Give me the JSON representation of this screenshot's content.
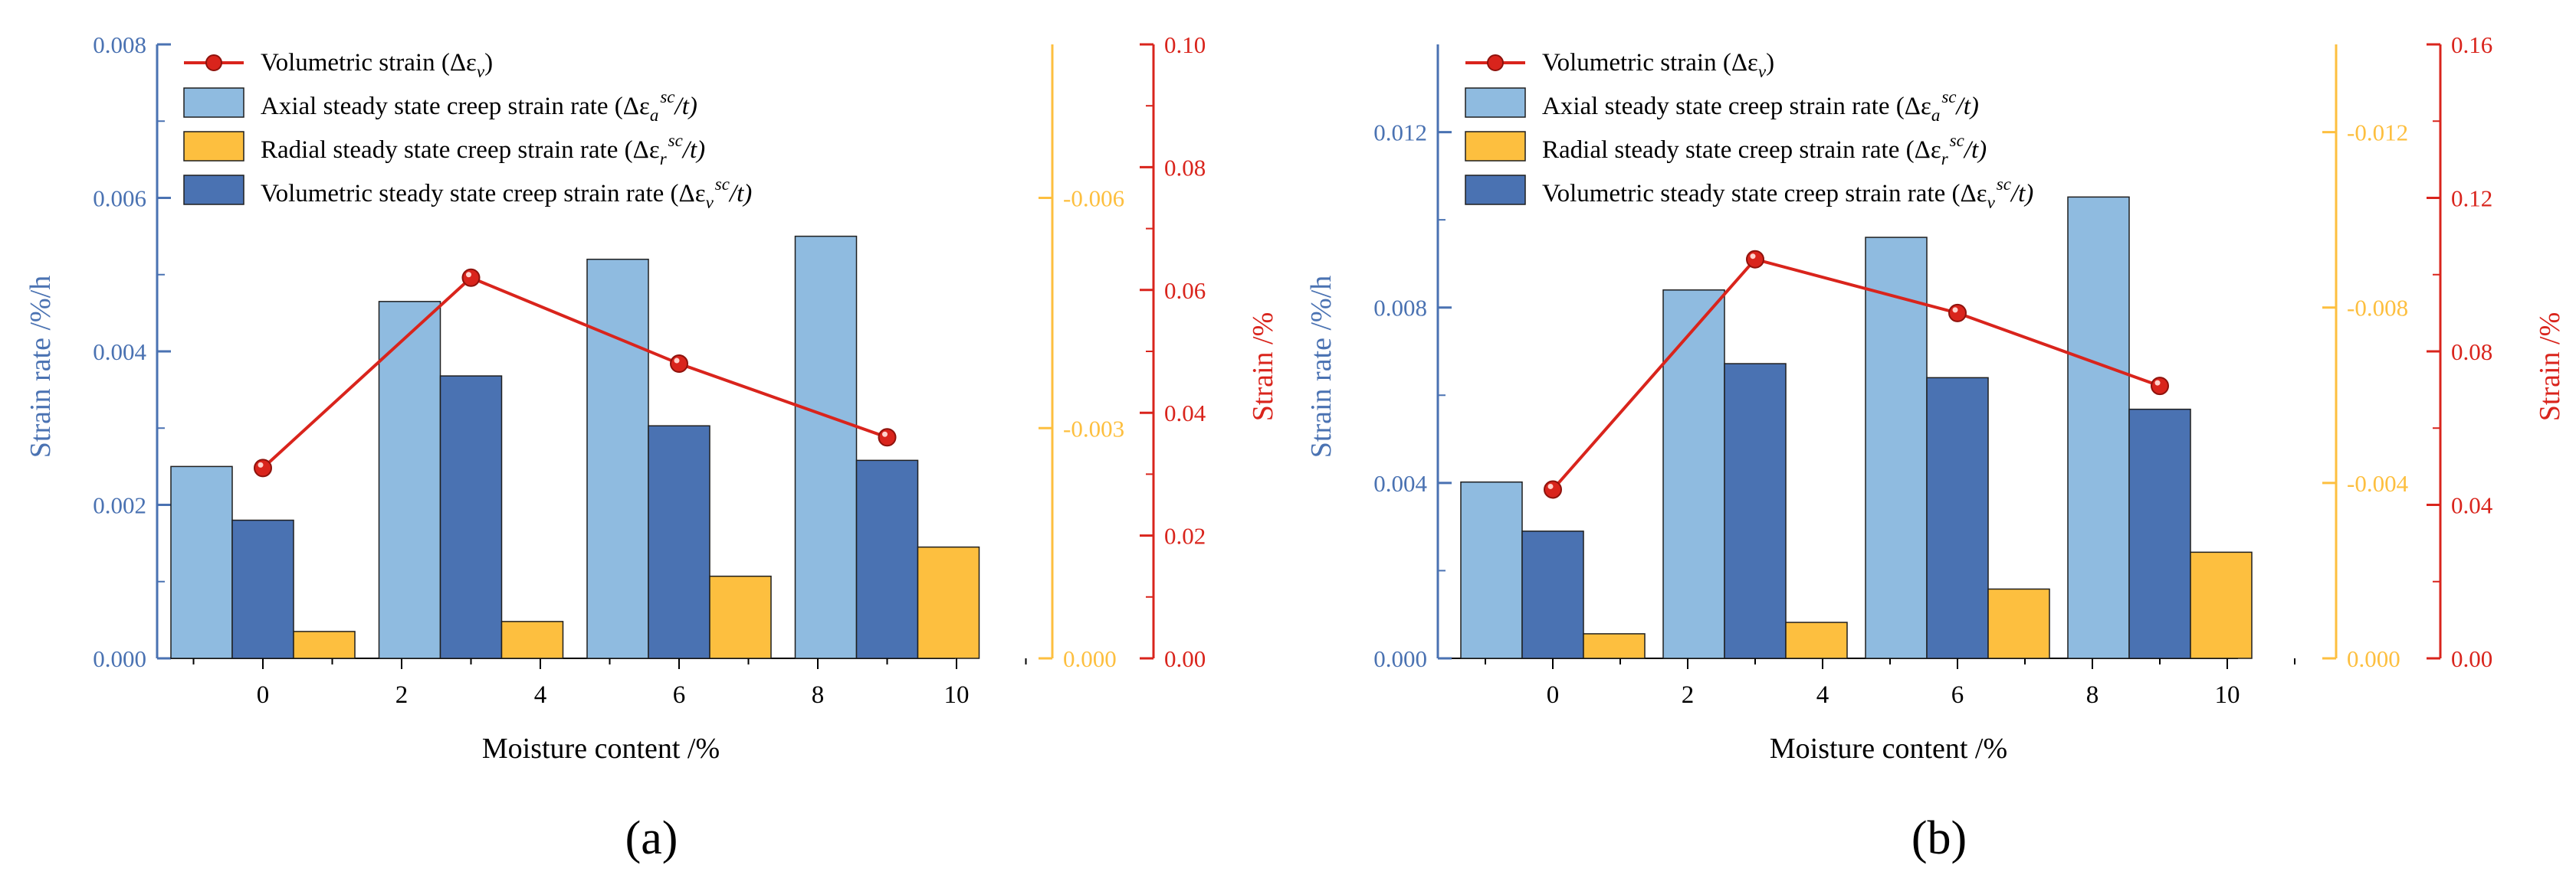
{
  "colors": {
    "axial": "#8fbbe0",
    "radial": "#fdbf3f",
    "volumetric": "#4a72b2",
    "strain_line": "#d9241c",
    "left_axis": "#4a72b2",
    "radial_axis": "#fdbf3f",
    "strain_axis": "#d9241c"
  },
  "chart_data": [
    {
      "type": "bar",
      "panel_label": "(a)",
      "xlabel": "Moisture content /%",
      "x_ticks": [
        "0",
        "2",
        "4",
        "6",
        "8",
        "10"
      ],
      "ylabel": "Strain rate /%/h",
      "ylim": [
        0,
        0.008
      ],
      "yticks": [
        "0.000",
        "0.002",
        "0.004",
        "0.006",
        "0.008"
      ],
      "radial_axis": {
        "ylim": [
          0,
          -0.008
        ],
        "ticks": [
          "0.000",
          "-0.003",
          "-0.006"
        ]
      },
      "strain_axis": {
        "ylabel": "Strain /%",
        "ylim": [
          0,
          0.1
        ],
        "ticks": [
          "0.00",
          "0.02",
          "0.04",
          "0.06",
          "0.08",
          "0.10"
        ]
      },
      "legend": {
        "strain": "Volumetric strain (Δε",
        "strain_sub": "v",
        "axial": "Axial steady state creep strain rate (Δε",
        "axial_sub": "a",
        "radial": "Radial steady state creep strain rate (Δε",
        "radial_sub": "r",
        "vol": "Volumetric steady state creep strain rate (Δε",
        "vol_sub": "v",
        "sc": "sc",
        "tail": "/t)",
        "close": ")"
      },
      "groups": [
        {
          "moisture": 0,
          "axial": 0.0025,
          "volumetric": 0.0018,
          "radial": -0.00035,
          "strain": 0.031
        },
        {
          "moisture": 3,
          "axial": 0.00465,
          "volumetric": 0.00368,
          "radial": -0.00048,
          "strain": 0.062
        },
        {
          "moisture": 6,
          "axial": 0.0052,
          "volumetric": 0.00303,
          "radial": -0.00107,
          "strain": 0.048
        },
        {
          "moisture": 9,
          "axial": 0.0055,
          "volumetric": 0.00258,
          "radial": -0.00145,
          "strain": 0.036
        }
      ]
    },
    {
      "type": "bar",
      "panel_label": "(b)",
      "xlabel": "Moisture content /%",
      "x_ticks": [
        "0",
        "2",
        "4",
        "6",
        "8",
        "10"
      ],
      "ylabel": "Strain rate /%/h",
      "ylim": [
        0,
        0.014
      ],
      "yticks": [
        "0.000",
        "0.004",
        "0.008",
        "0.012"
      ],
      "radial_axis": {
        "ylim": [
          0,
          -0.014
        ],
        "ticks": [
          "0.000",
          "-0.004",
          "-0.008",
          "-0.012"
        ]
      },
      "strain_axis": {
        "ylabel": "Strain /%",
        "ylim": [
          0,
          0.16
        ],
        "ticks": [
          "0.00",
          "0.04",
          "0.08",
          "0.12",
          "0.16"
        ]
      },
      "legend": {
        "strain": "Volumetric strain (Δε",
        "strain_sub": "v",
        "axial": "Axial steady state creep strain rate (Δε",
        "axial_sub": "a",
        "radial": "Radial steady state creep strain rate (Δε",
        "radial_sub": "r",
        "vol": "Volumetric steady state creep strain rate (Δε",
        "vol_sub": "v",
        "sc": "sc",
        "tail": "/t)",
        "close": ")"
      },
      "groups": [
        {
          "moisture": 0,
          "axial": 0.00402,
          "volumetric": 0.0029,
          "radial": -0.00056,
          "strain": 0.044
        },
        {
          "moisture": 3,
          "axial": 0.0084,
          "volumetric": 0.00672,
          "radial": -0.00082,
          "strain": 0.104
        },
        {
          "moisture": 6,
          "axial": 0.0096,
          "volumetric": 0.0064,
          "radial": -0.00158,
          "strain": 0.09
        },
        {
          "moisture": 9,
          "axial": 0.01052,
          "volumetric": 0.00568,
          "radial": -0.00242,
          "strain": 0.071
        }
      ]
    }
  ]
}
